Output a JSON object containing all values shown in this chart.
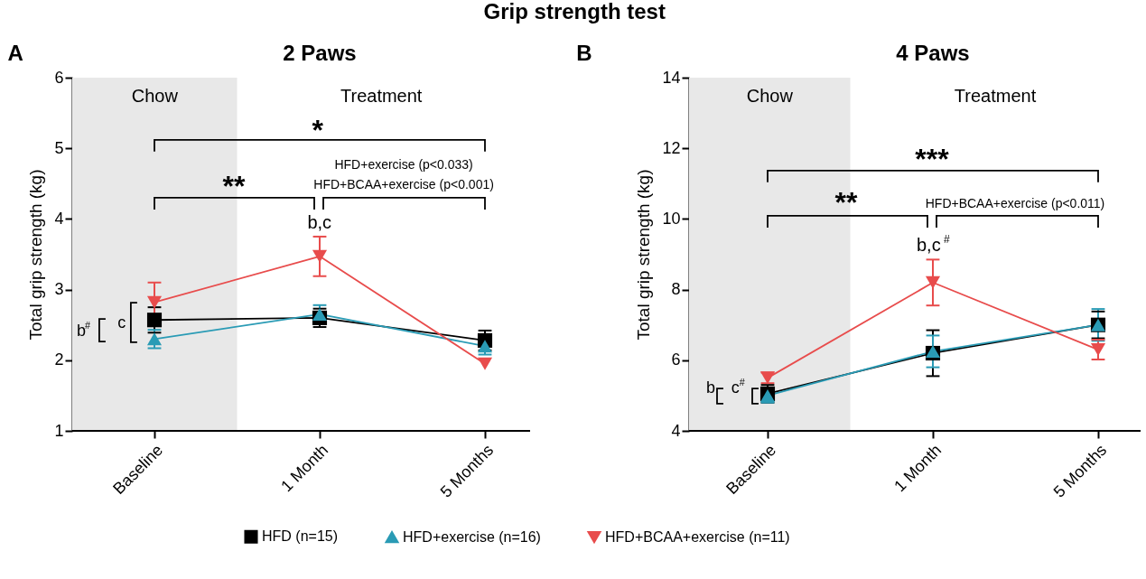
{
  "chart_data": [
    {
      "type": "line",
      "title": "2 Paws",
      "ylabel": "Total grip strength (kg)",
      "categories": [
        "Baseline",
        "1 Month",
        "5 Months"
      ],
      "ylim": [
        1,
        6
      ],
      "yticks": [
        1,
        2,
        3,
        4,
        5,
        6
      ],
      "legend": "bottom",
      "series": [
        {
          "name": "HFD (n=15)",
          "color": "#000000",
          "marker": "square",
          "values": [
            2.57,
            2.6,
            2.28
          ],
          "errors": [
            0.18,
            0.13,
            0.14
          ]
        },
        {
          "name": "HFD+exercise (n=16)",
          "color": "#2a9bb5",
          "marker": "triangle",
          "values": [
            2.3,
            2.65,
            2.2
          ],
          "errors": [
            0.13,
            0.13,
            0.12
          ]
        },
        {
          "name": "HFD+BCAA+exercise (n=11)",
          "color": "#e84c4c",
          "marker": "triangle-down",
          "values": [
            2.82,
            3.47,
            1.95
          ],
          "errors": [
            0.28,
            0.28,
            null
          ]
        }
      ],
      "bands": [
        {
          "axis": "x",
          "from": "Baseline",
          "to": "Baseline",
          "label": "Chow",
          "color": "#e8e8e8"
        }
      ],
      "annotations": [
        "Grip strength test",
        "A",
        "Treatment",
        "*",
        "**",
        "HFD+exercise (p<0.033)",
        "HFD+BCAA+exercise (p<0.001)",
        "b,c",
        "b$^{#}$",
        "c"
      ]
    },
    {
      "type": "line",
      "title": "4 Paws",
      "ylabel": "Total grip strength (kg)",
      "categories": [
        "Baseline",
        "1 Month",
        "5 Months"
      ],
      "ylim": [
        4,
        14
      ],
      "yticks": [
        4,
        6,
        8,
        10,
        12,
        14
      ],
      "series": [
        {
          "color": "#000000",
          "marker": "square",
          "values": [
            5.05,
            6.2,
            7.0
          ],
          "errors": [
            0.25,
            0.65,
            0.38
          ]
        },
        {
          "color": "#2a9bb5",
          "marker": "triangle",
          "values": [
            5.0,
            6.25,
            7.0
          ],
          "errors": [
            0.2,
            0.45,
            0.45
          ]
        },
        {
          "color": "#e84c4c",
          "marker": "triangle-down",
          "values": [
            5.5,
            8.2,
            6.3
          ],
          "errors": [
            0.15,
            0.65,
            0.28
          ]
        }
      ],
      "bands": [
        {
          "axis": "x",
          "from": "Baseline",
          "to": "Baseline",
          "label": "Chow",
          "color": "#e8e8e8"
        }
      ],
      "annotations": [
        "B",
        "Treatment",
        "***",
        "**",
        "HFD+BCAA+exercise (p<0.011)",
        "b,c$^{#}$",
        "b",
        "c$^{#}$"
      ]
    }
  ]
}
